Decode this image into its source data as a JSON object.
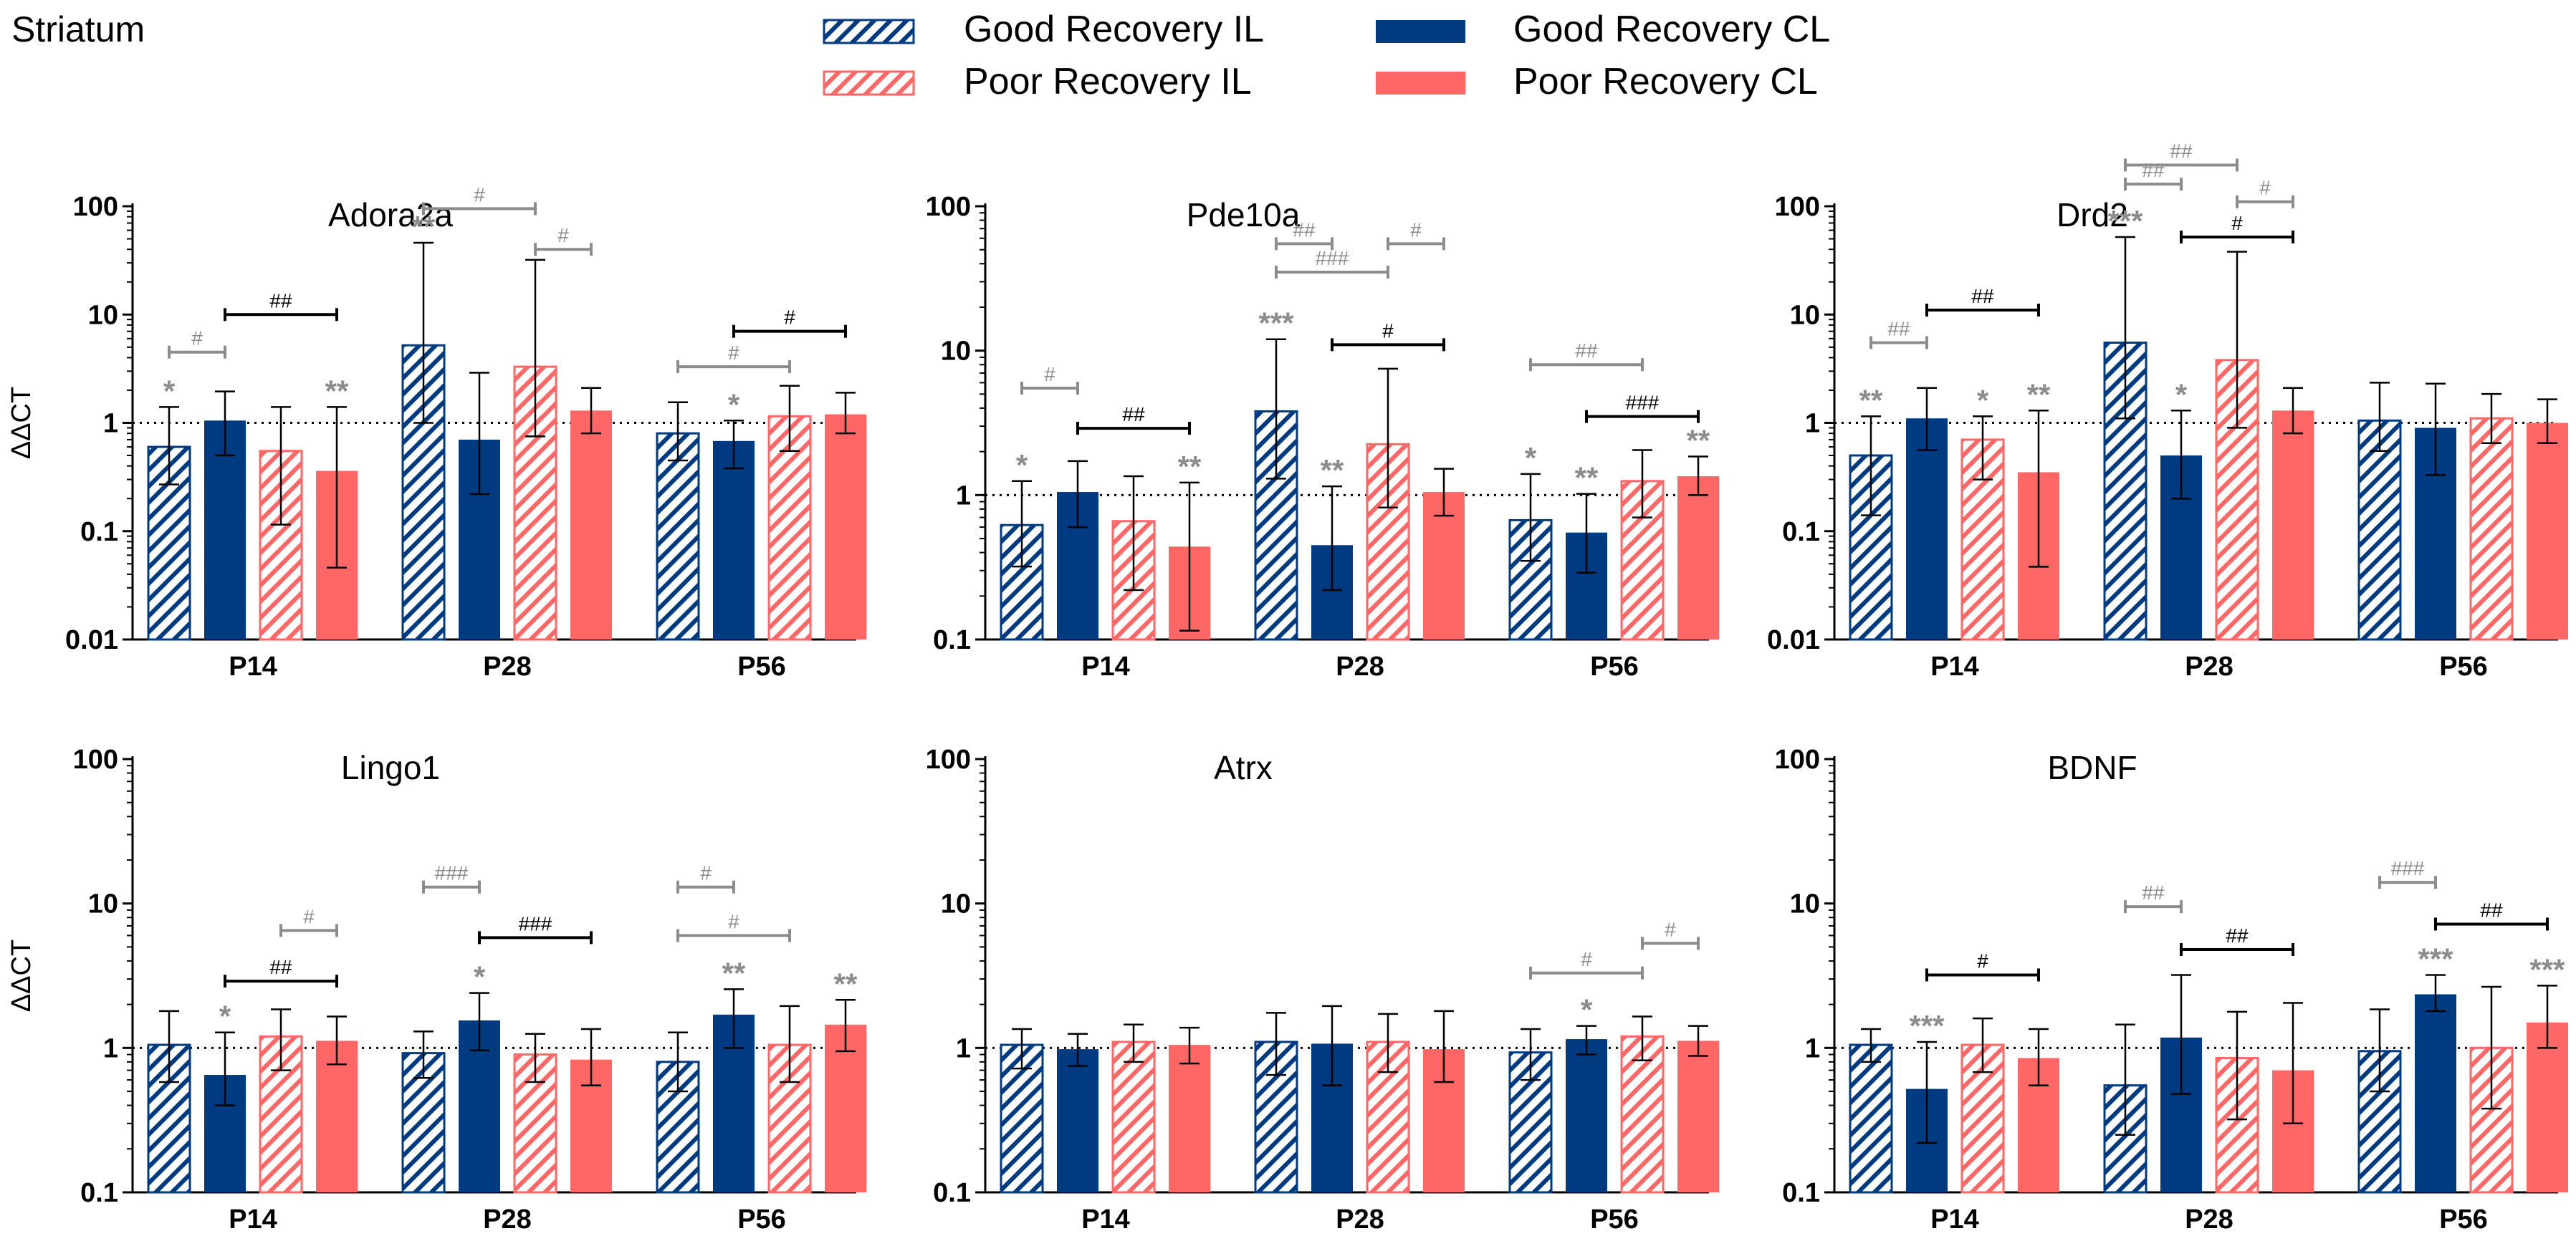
{
  "region": "Striatum",
  "colors": {
    "navy": "#003A80",
    "salmon": "#FF6666",
    "sig": "#8C8C8C",
    "black": "#000000"
  },
  "legend": [
    {
      "label": "Good Recovery IL",
      "color": "#003A80",
      "pattern": "hatch"
    },
    {
      "label": "Poor Recovery IL",
      "color": "#FF6666",
      "pattern": "hatch"
    },
    {
      "label": "Good Recovery CL",
      "color": "#003A80",
      "pattern": "solid"
    },
    {
      "label": "Poor Recovery CL",
      "color": "#FF6666",
      "pattern": "solid"
    }
  ],
  "chart_data": [
    {
      "type": "bar",
      "title": "Adora2a",
      "ylabel": "ΔΔCT",
      "yscale": "log",
      "ylim": [
        0.01,
        100
      ],
      "yticks": [
        "100",
        "10",
        "1",
        "0.1",
        "0.01"
      ],
      "reference_line": 1,
      "categories": [
        "P14",
        "P28",
        "P56"
      ],
      "series": [
        {
          "name": "Good Recovery IL",
          "values": [
            0.6,
            5.2,
            0.8
          ],
          "err_low": [
            0.27,
            1.0,
            0.45
          ],
          "err_high": [
            1.4,
            46,
            1.55
          ]
        },
        {
          "name": "Good Recovery CL",
          "values": [
            1.05,
            0.7,
            0.68
          ],
          "err_low": [
            0.5,
            0.22,
            0.38
          ],
          "err_high": [
            1.95,
            2.9,
            1.05
          ]
        },
        {
          "name": "Poor Recovery IL",
          "values": [
            0.55,
            3.3,
            1.15
          ],
          "err_low": [
            0.115,
            0.75,
            0.55
          ],
          "err_high": [
            1.4,
            32,
            2.2
          ]
        },
        {
          "name": "Poor Recovery CL",
          "values": [
            0.36,
            1.3,
            1.2
          ],
          "err_low": [
            0.046,
            0.8,
            0.8
          ],
          "err_high": [
            1.4,
            2.1,
            1.9
          ]
        }
      ],
      "stars": [
        {
          "group": 0,
          "bar": 0,
          "text": "*"
        },
        {
          "group": 0,
          "bar": 3,
          "text": "**"
        },
        {
          "group": 1,
          "bar": 0,
          "text": "**"
        },
        {
          "group": 2,
          "bar": 1,
          "text": "*"
        }
      ],
      "brackets": [
        {
          "group": 0,
          "from": 0,
          "to": 1,
          "y": 4.5,
          "text": "#",
          "color": "sig"
        },
        {
          "group": 0,
          "from": 1,
          "to": 3,
          "y": 10,
          "text": "##",
          "color": "black"
        },
        {
          "group": 1,
          "from": 0,
          "to": 2,
          "y": 95,
          "text": "#",
          "color": "sig"
        },
        {
          "group": 1,
          "from": 2,
          "to": 3,
          "y": 40,
          "text": "#",
          "color": "sig"
        },
        {
          "group": 2,
          "from": 0,
          "to": 2,
          "y": 3.3,
          "text": "#",
          "color": "sig"
        },
        {
          "group": 2,
          "from": 1,
          "to": 3,
          "y": 7,
          "text": "#",
          "color": "black"
        }
      ]
    },
    {
      "type": "bar",
      "title": "Pde10a",
      "ylabel": "",
      "yscale": "log",
      "ylim": [
        0.1,
        100
      ],
      "yticks": [
        "100",
        "10",
        "1",
        "0.1"
      ],
      "reference_line": 1,
      "categories": [
        "P14",
        "P28",
        "P56"
      ],
      "series": [
        {
          "name": "Good Recovery IL",
          "values": [
            0.62,
            3.8,
            0.67
          ],
          "err_low": [
            0.32,
            1.3,
            0.35
          ],
          "err_high": [
            1.25,
            12,
            1.4
          ]
        },
        {
          "name": "Good Recovery CL",
          "values": [
            1.05,
            0.45,
            0.55
          ],
          "err_low": [
            0.6,
            0.22,
            0.29
          ],
          "err_high": [
            1.72,
            1.15,
            1.02
          ]
        },
        {
          "name": "Poor Recovery IL",
          "values": [
            0.66,
            2.25,
            1.25
          ],
          "err_low": [
            0.22,
            0.82,
            0.7
          ],
          "err_high": [
            1.35,
            7.5,
            2.05
          ]
        },
        {
          "name": "Poor Recovery CL",
          "values": [
            0.44,
            1.05,
            1.35
          ],
          "err_low": [
            0.115,
            0.72,
            1.0
          ],
          "err_high": [
            1.22,
            1.52,
            1.85
          ]
        }
      ],
      "stars": [
        {
          "group": 0,
          "bar": 0,
          "text": "*"
        },
        {
          "group": 0,
          "bar": 3,
          "text": "**"
        },
        {
          "group": 1,
          "bar": 0,
          "text": "***"
        },
        {
          "group": 1,
          "bar": 1,
          "text": "**"
        },
        {
          "group": 2,
          "bar": 0,
          "text": "*"
        },
        {
          "group": 2,
          "bar": 1,
          "text": "**"
        },
        {
          "group": 2,
          "bar": 3,
          "text": "**"
        }
      ],
      "brackets": [
        {
          "group": 0,
          "from": 0,
          "to": 1,
          "y": 5.5,
          "text": "#",
          "color": "sig"
        },
        {
          "group": 0,
          "from": 1,
          "to": 3,
          "y": 2.9,
          "text": "##",
          "color": "black"
        },
        {
          "group": 1,
          "from": 0,
          "to": 1,
          "y": 55,
          "text": "##",
          "color": "sig"
        },
        {
          "group": 1,
          "from": 0,
          "to": 2,
          "y": 35,
          "text": "###",
          "color": "sig"
        },
        {
          "group": 1,
          "from": 2,
          "to": 3,
          "y": 55,
          "text": "#",
          "color": "sig"
        },
        {
          "group": 1,
          "from": 1,
          "to": 3,
          "y": 11,
          "text": "#",
          "color": "black"
        },
        {
          "group": 2,
          "from": 0,
          "to": 2,
          "y": 8,
          "text": "##",
          "color": "sig"
        },
        {
          "group": 2,
          "from": 1,
          "to": 3,
          "y": 3.5,
          "text": "###",
          "color": "black"
        }
      ]
    },
    {
      "type": "bar",
      "title": "Drd2",
      "ylabel": "",
      "yscale": "log",
      "ylim": [
        0.01,
        100
      ],
      "yticks": [
        "100",
        "10",
        "1",
        "0.1",
        "0.01"
      ],
      "reference_line": 1,
      "categories": [
        "P14",
        "P28",
        "P56"
      ],
      "series": [
        {
          "name": "Good Recovery IL",
          "values": [
            0.5,
            5.5,
            1.05
          ],
          "err_low": [
            0.14,
            1.1,
            0.55
          ],
          "err_high": [
            1.15,
            52,
            2.35
          ]
        },
        {
          "name": "Good Recovery CL",
          "values": [
            1.1,
            0.5,
            0.9
          ],
          "err_low": [
            0.56,
            0.2,
            0.33
          ],
          "err_high": [
            2.1,
            1.3,
            2.3
          ]
        },
        {
          "name": "Poor Recovery IL",
          "values": [
            0.7,
            3.8,
            1.1
          ],
          "err_low": [
            0.3,
            0.9,
            0.65
          ],
          "err_high": [
            1.15,
            38,
            1.85
          ]
        },
        {
          "name": "Poor Recovery CL",
          "values": [
            0.35,
            1.3,
            1.0
          ],
          "err_low": [
            0.047,
            0.8,
            0.65
          ],
          "err_high": [
            1.3,
            2.1,
            1.65
          ]
        }
      ],
      "stars": [
        {
          "group": 0,
          "bar": 0,
          "text": "**"
        },
        {
          "group": 0,
          "bar": 2,
          "text": "*"
        },
        {
          "group": 0,
          "bar": 3,
          "text": "**"
        },
        {
          "group": 1,
          "bar": 0,
          "text": "***"
        },
        {
          "group": 1,
          "bar": 1,
          "text": "*"
        }
      ],
      "brackets": [
        {
          "group": 0,
          "from": 0,
          "to": 1,
          "y": 5.5,
          "text": "##",
          "color": "sig"
        },
        {
          "group": 0,
          "from": 1,
          "to": 3,
          "y": 11,
          "text": "##",
          "color": "black"
        },
        {
          "group": 1,
          "from": 0,
          "to": 2,
          "y": 240,
          "text": "##",
          "color": "sig"
        },
        {
          "group": 1,
          "from": 0,
          "to": 1,
          "y": 160,
          "text": "##",
          "color": "sig"
        },
        {
          "group": 1,
          "from": 2,
          "to": 3,
          "y": 110,
          "text": "#",
          "color": "sig"
        },
        {
          "group": 1,
          "from": 1,
          "to": 3,
          "y": 52,
          "text": "#",
          "color": "black"
        }
      ]
    },
    {
      "type": "bar",
      "title": "Lingo1",
      "ylabel": "ΔΔCT",
      "yscale": "log",
      "ylim": [
        0.1,
        100
      ],
      "yticks": [
        "100",
        "10",
        "1",
        "0.1"
      ],
      "reference_line": 1,
      "categories": [
        "P14",
        "P28",
        "P56"
      ],
      "series": [
        {
          "name": "Good Recovery IL",
          "values": [
            1.05,
            0.92,
            0.8
          ],
          "err_low": [
            0.58,
            0.62,
            0.5
          ],
          "err_high": [
            1.8,
            1.3,
            1.28
          ]
        },
        {
          "name": "Good Recovery CL",
          "values": [
            0.65,
            1.55,
            1.7
          ],
          "err_low": [
            0.4,
            0.96,
            1.0
          ],
          "err_high": [
            1.28,
            2.4,
            2.55
          ]
        },
        {
          "name": "Poor Recovery IL",
          "values": [
            1.2,
            0.9,
            1.05
          ],
          "err_low": [
            0.7,
            0.58,
            0.58
          ],
          "err_high": [
            1.85,
            1.25,
            1.95
          ]
        },
        {
          "name": "Poor Recovery CL",
          "values": [
            1.12,
            0.83,
            1.45
          ],
          "err_low": [
            0.77,
            0.55,
            0.95
          ],
          "err_high": [
            1.65,
            1.35,
            2.15
          ]
        }
      ],
      "stars": [
        {
          "group": 0,
          "bar": 1,
          "text": "*"
        },
        {
          "group": 1,
          "bar": 1,
          "text": "*"
        },
        {
          "group": 2,
          "bar": 1,
          "text": "**"
        },
        {
          "group": 2,
          "bar": 3,
          "text": "**"
        }
      ],
      "brackets": [
        {
          "group": 0,
          "from": 2,
          "to": 3,
          "y": 6.5,
          "text": "#",
          "color": "sig"
        },
        {
          "group": 0,
          "from": 1,
          "to": 3,
          "y": 2.9,
          "text": "##",
          "color": "black"
        },
        {
          "group": 1,
          "from": 0,
          "to": 1,
          "y": 13,
          "text": "###",
          "color": "sig"
        },
        {
          "group": 1,
          "from": 1,
          "to": 3,
          "y": 5.8,
          "text": "###",
          "color": "black"
        },
        {
          "group": 2,
          "from": 0,
          "to": 1,
          "y": 13,
          "text": "#",
          "color": "sig"
        },
        {
          "group": 2,
          "from": 0,
          "to": 2,
          "y": 6,
          "text": "#",
          "color": "sig"
        }
      ]
    },
    {
      "type": "bar",
      "title": "Atrx",
      "ylabel": "",
      "yscale": "log",
      "ylim": [
        0.1,
        100
      ],
      "yticks": [
        "100",
        "10",
        "1",
        "0.1"
      ],
      "reference_line": 1,
      "categories": [
        "P14",
        "P28",
        "P56"
      ],
      "series": [
        {
          "name": "Good Recovery IL",
          "values": [
            1.05,
            1.1,
            0.93
          ],
          "err_low": [
            0.72,
            0.65,
            0.6
          ],
          "err_high": [
            1.35,
            1.75,
            1.35
          ]
        },
        {
          "name": "Good Recovery CL",
          "values": [
            0.98,
            1.07,
            1.15
          ],
          "err_low": [
            0.75,
            0.55,
            0.9
          ],
          "err_high": [
            1.25,
            1.95,
            1.42
          ]
        },
        {
          "name": "Poor Recovery IL",
          "values": [
            1.1,
            1.1,
            1.2
          ],
          "err_low": [
            0.8,
            0.68,
            0.82
          ],
          "err_high": [
            1.45,
            1.72,
            1.65
          ]
        },
        {
          "name": "Poor Recovery CL",
          "values": [
            1.05,
            0.98,
            1.12
          ],
          "err_low": [
            0.78,
            0.58,
            0.88
          ],
          "err_high": [
            1.38,
            1.8,
            1.42
          ]
        }
      ],
      "stars": [
        {
          "group": 2,
          "bar": 1,
          "text": "*"
        }
      ],
      "brackets": [
        {
          "group": 2,
          "from": 0,
          "to": 2,
          "y": 3.3,
          "text": "#",
          "color": "sig"
        },
        {
          "group": 2,
          "from": 2,
          "to": 3,
          "y": 5.3,
          "text": "#",
          "color": "sig"
        }
      ]
    },
    {
      "type": "bar",
      "title": "BDNF",
      "ylabel": "",
      "yscale": "log",
      "ylim": [
        0.1,
        100
      ],
      "yticks": [
        "100",
        "10",
        "1",
        "0.1"
      ],
      "reference_line": 1,
      "categories": [
        "P14",
        "P28",
        "P56"
      ],
      "series": [
        {
          "name": "Good Recovery IL",
          "values": [
            1.05,
            0.55,
            0.95
          ],
          "err_low": [
            0.8,
            0.25,
            0.5
          ],
          "err_high": [
            1.35,
            1.45,
            1.85
          ]
        },
        {
          "name": "Good Recovery CL",
          "values": [
            0.52,
            1.18,
            2.35
          ],
          "err_low": [
            0.22,
            0.48,
            1.8
          ],
          "err_high": [
            1.1,
            3.2,
            3.2
          ]
        },
        {
          "name": "Poor Recovery IL",
          "values": [
            1.05,
            0.85,
            1.0
          ],
          "err_low": [
            0.68,
            0.32,
            0.38
          ],
          "err_high": [
            1.6,
            1.78,
            2.65
          ]
        },
        {
          "name": "Poor Recovery CL",
          "values": [
            0.85,
            0.7,
            1.5
          ],
          "err_low": [
            0.55,
            0.3,
            1.0
          ],
          "err_high": [
            1.35,
            2.05,
            2.7
          ]
        }
      ],
      "stars": [
        {
          "group": 0,
          "bar": 1,
          "text": "***"
        },
        {
          "group": 2,
          "bar": 1,
          "text": "***"
        },
        {
          "group": 2,
          "bar": 3,
          "text": "***"
        }
      ],
      "brackets": [
        {
          "group": 0,
          "from": 1,
          "to": 3,
          "y": 3.2,
          "text": "#",
          "color": "black"
        },
        {
          "group": 1,
          "from": 0,
          "to": 1,
          "y": 9.5,
          "text": "##",
          "color": "sig"
        },
        {
          "group": 1,
          "from": 1,
          "to": 3,
          "y": 4.8,
          "text": "##",
          "color": "black"
        },
        {
          "group": 2,
          "from": 0,
          "to": 1,
          "y": 14,
          "text": "###",
          "color": "sig"
        },
        {
          "group": 2,
          "from": 1,
          "to": 3,
          "y": 7.2,
          "text": "##",
          "color": "black"
        }
      ]
    }
  ]
}
